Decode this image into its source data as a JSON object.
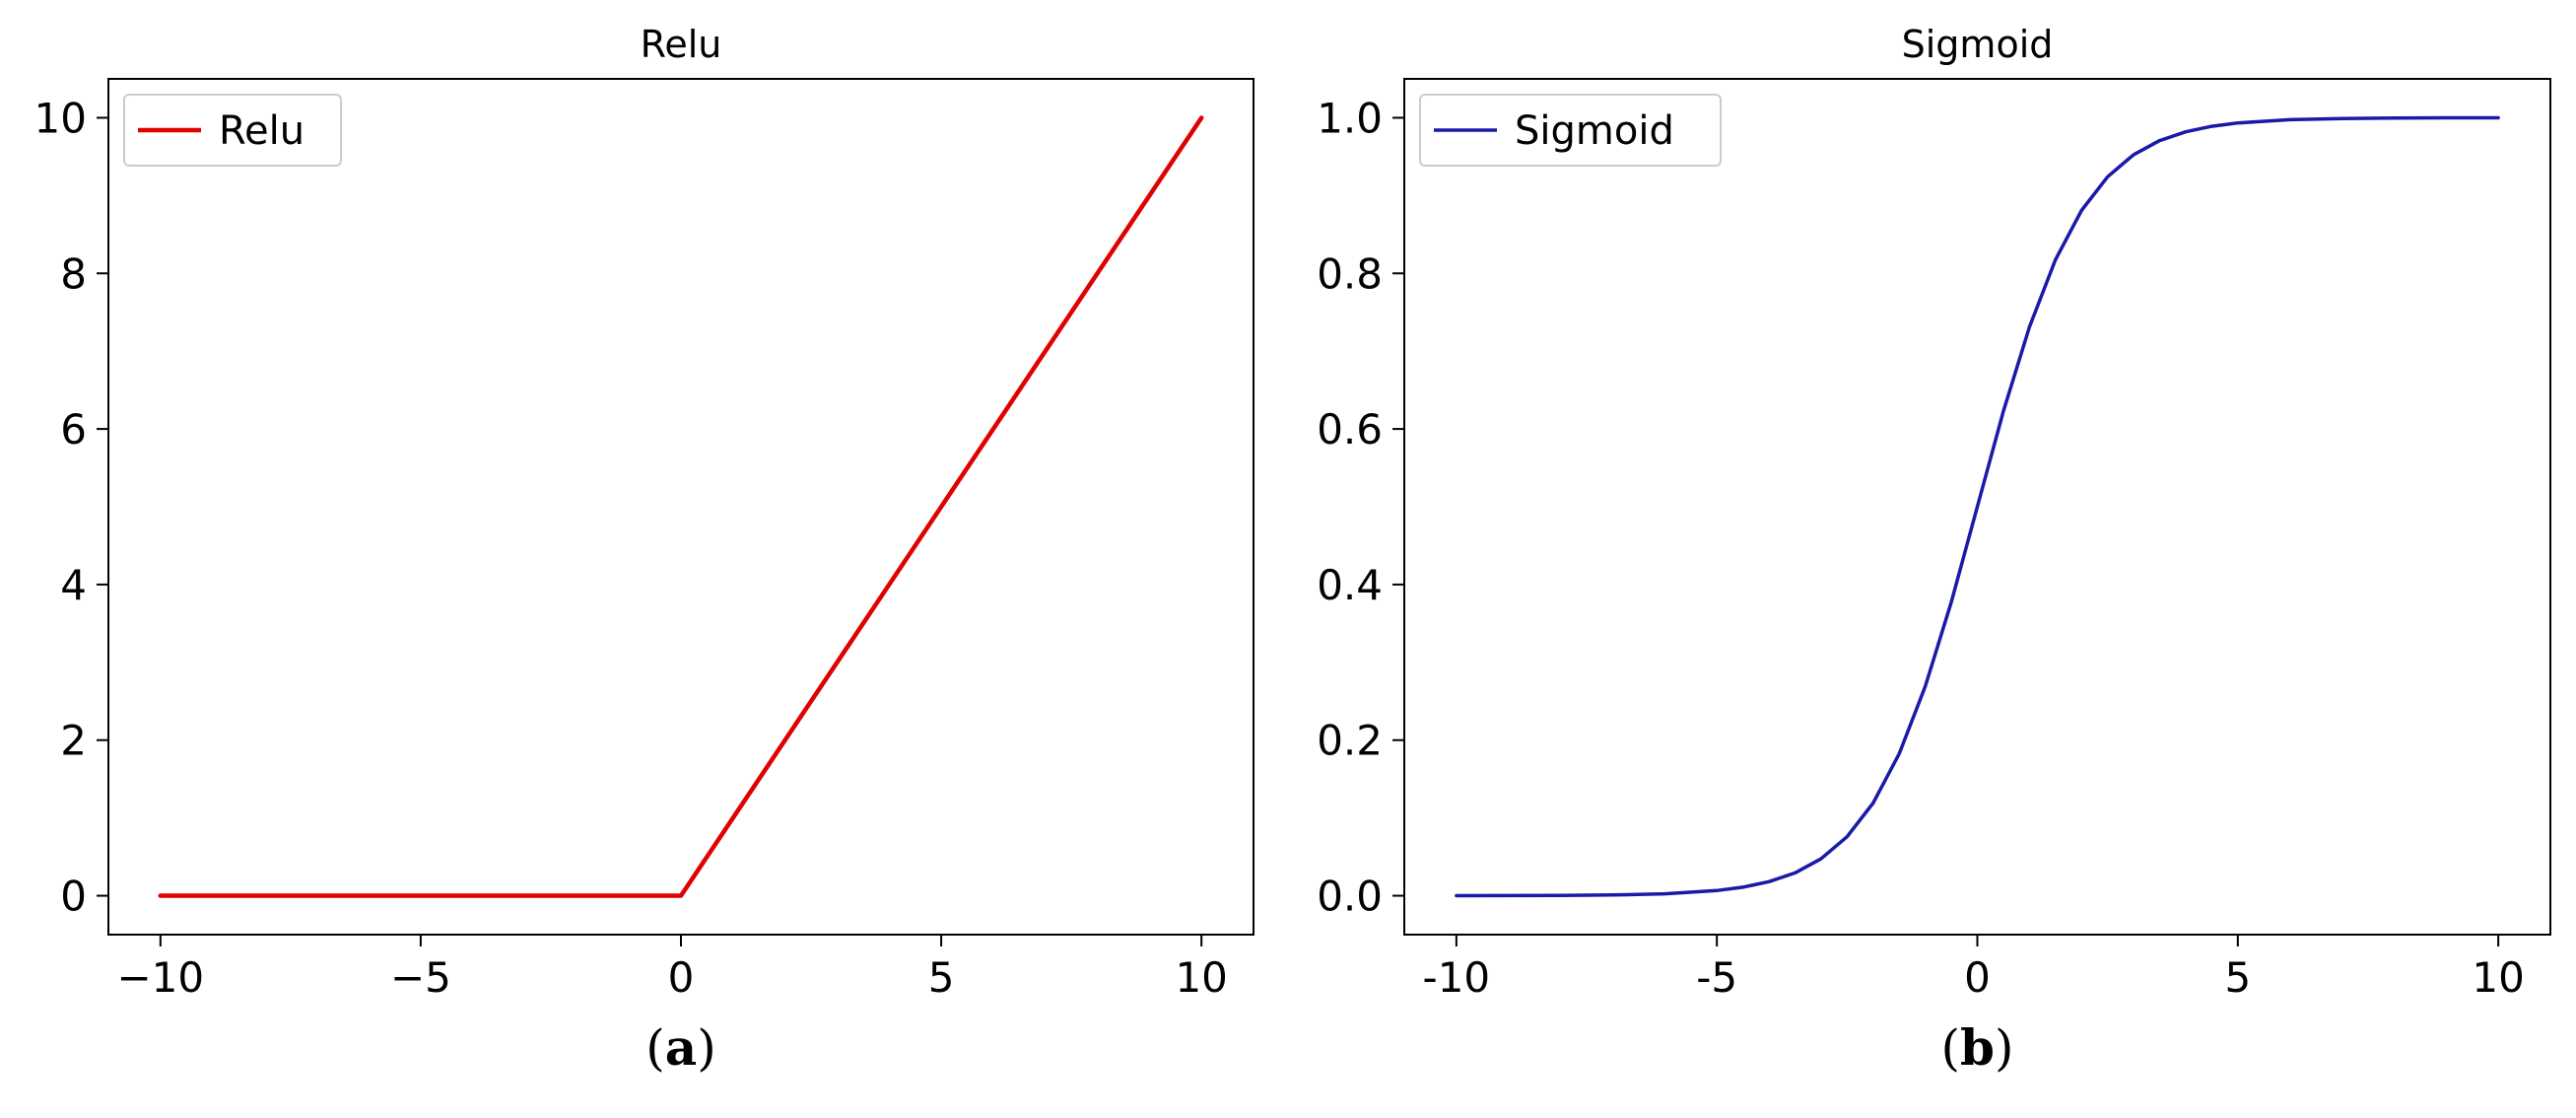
{
  "chart_data": [
    {
      "type": "line",
      "title": "Relu",
      "caption_letter": "a",
      "xlabel": "",
      "ylabel": "",
      "xlim": [
        -11,
        11
      ],
      "ylim": [
        -0.5,
        10.5
      ],
      "xticks": [
        -10,
        -5,
        0,
        5,
        10
      ],
      "xtick_labels": [
        "−10",
        "−5",
        "0",
        "5",
        "10"
      ],
      "yticks": [
        0,
        2,
        4,
        6,
        8,
        10
      ],
      "ytick_labels": [
        "0",
        "2",
        "4",
        "6",
        "8",
        "10"
      ],
      "grid": false,
      "legend_position": "top-left",
      "series": [
        {
          "name": "Relu",
          "color": "#e00000",
          "x": [
            -10,
            0,
            10
          ],
          "y": [
            0,
            0,
            10
          ]
        }
      ]
    },
    {
      "type": "line",
      "title": "Sigmoid",
      "caption_letter": "b",
      "xlabel": "",
      "ylabel": "",
      "xlim": [
        -11,
        11
      ],
      "ylim": [
        -0.05,
        1.05
      ],
      "xticks": [
        -10,
        -5,
        0,
        5,
        10
      ],
      "xtick_labels": [
        "-10",
        "-5",
        "0",
        "5",
        "10"
      ],
      "yticks": [
        0.0,
        0.2,
        0.4,
        0.6,
        0.8,
        1.0
      ],
      "ytick_labels": [
        "0.0",
        "0.2",
        "0.4",
        "0.6",
        "0.8",
        "1.0"
      ],
      "grid": false,
      "legend_position": "top-left",
      "series": [
        {
          "name": "Sigmoid",
          "color": "#1a1aa8",
          "x": [
            -10,
            -9,
            -8,
            -7,
            -6,
            -5,
            -4.5,
            -4,
            -3.5,
            -3,
            -2.5,
            -2,
            -1.5,
            -1,
            -0.5,
            0,
            0.5,
            1,
            1.5,
            2,
            2.5,
            3,
            3.5,
            4,
            4.5,
            5,
            6,
            7,
            8,
            9,
            10
          ],
          "y": [
            4.54e-05,
            0.000123,
            0.000335,
            0.000911,
            0.00247,
            0.00669,
            0.011,
            0.018,
            0.0293,
            0.0474,
            0.0759,
            0.1192,
            0.1824,
            0.2689,
            0.3775,
            0.5,
            0.6225,
            0.7311,
            0.8176,
            0.8808,
            0.9241,
            0.9526,
            0.9707,
            0.982,
            0.989,
            0.9933,
            0.9975,
            0.9991,
            0.9997,
            0.9999,
            0.99995
          ]
        }
      ]
    }
  ]
}
